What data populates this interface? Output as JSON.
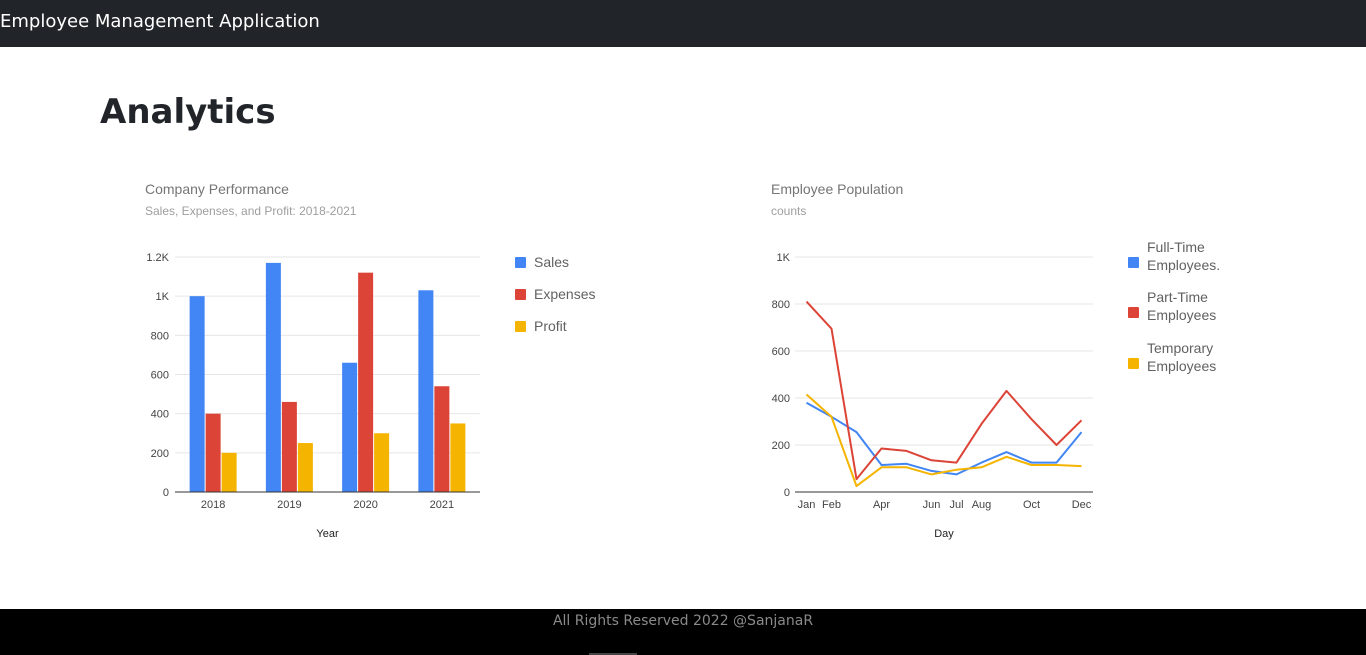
{
  "app": {
    "title": "Employee Management Application"
  },
  "page": {
    "title": "Analytics"
  },
  "footer": {
    "text": "All Rights Reserved 2022 @SanjanaR"
  },
  "chart_data": [
    {
      "type": "bar",
      "title": "Company Performance",
      "subtitle": "Sales, Expenses, and Profit: 2018-2021",
      "xlabel": "Year",
      "ylabel": "",
      "categories": [
        "2018",
        "2019",
        "2020",
        "2021"
      ],
      "series": [
        {
          "name": "Sales",
          "color": "#4285f4",
          "values": [
            1000,
            1170,
            660,
            1030
          ]
        },
        {
          "name": "Expenses",
          "color": "#db4437",
          "values": [
            400,
            460,
            1120,
            540
          ]
        },
        {
          "name": "Profit",
          "color": "#f4b400",
          "values": [
            200,
            250,
            300,
            350
          ]
        }
      ],
      "ylim": [
        0,
        1200
      ],
      "yticks": [
        0,
        200,
        400,
        600,
        800,
        1000,
        1200
      ],
      "ytick_labels": [
        "0",
        "200",
        "400",
        "600",
        "800",
        "1K",
        "1.2K"
      ],
      "grid": true,
      "legend": "right"
    },
    {
      "type": "line",
      "title": "Employee Population",
      "subtitle": "counts",
      "xlabel": "Day",
      "ylabel": "",
      "x": [
        "Jan",
        "Feb",
        "Mar",
        "Apr",
        "May",
        "Jun",
        "Jul",
        "Aug",
        "Sep",
        "Oct",
        "Nov",
        "Dec"
      ],
      "xtick_labels": [
        "Jan",
        "Feb",
        "",
        "Apr",
        "",
        "Jun",
        "Jul",
        "Aug",
        "",
        "Oct",
        "",
        "Dec"
      ],
      "series": [
        {
          "name": "Full-Time Employees.",
          "color": "#4285f4",
          "values": [
            380,
            320,
            255,
            115,
            120,
            90,
            75,
            125,
            170,
            125,
            125,
            255
          ]
        },
        {
          "name": "Part-Time Employees",
          "color": "#db4437",
          "values": [
            810,
            695,
            55,
            185,
            175,
            135,
            125,
            290,
            430,
            310,
            200,
            305
          ]
        },
        {
          "name": "Temporary Employees",
          "color": "#f4b400",
          "values": [
            415,
            320,
            25,
            105,
            105,
            75,
            95,
            105,
            150,
            115,
            115,
            110
          ]
        }
      ],
      "ylim": [
        0,
        1000
      ],
      "yticks": [
        0,
        200,
        400,
        600,
        800,
        1000
      ],
      "ytick_labels": [
        "0",
        "200",
        "400",
        "600",
        "800",
        "1K"
      ],
      "grid": true,
      "legend": "right"
    }
  ]
}
